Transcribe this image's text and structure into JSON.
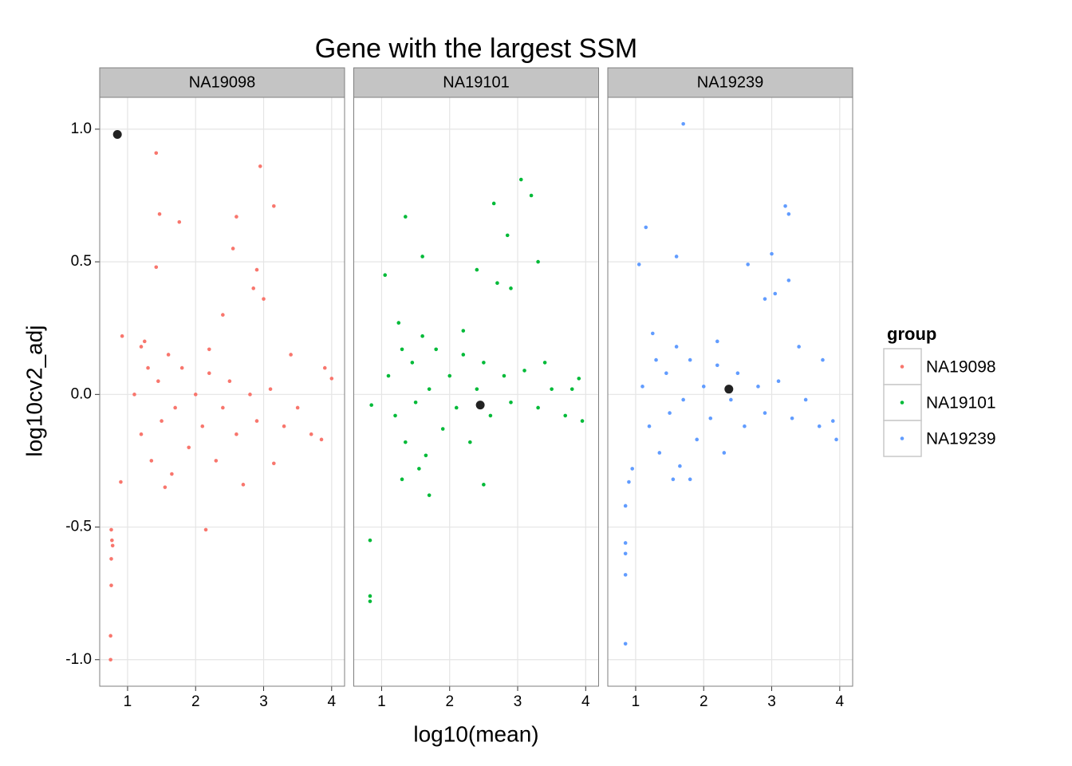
{
  "chart_data": {
    "type": "scatter",
    "title": "Gene with the largest SSM",
    "xlabel": "log10(mean)",
    "ylabel": "log10cv2_adj",
    "legend_title": "group",
    "xlim": [
      0.59,
      4.19
    ],
    "ylim": [
      -1.1,
      1.12
    ],
    "xticks": [
      1,
      2,
      3,
      4
    ],
    "yticks": [
      {
        "value": -1,
        "label": "-1.0"
      },
      -0.5,
      {
        "value": 0,
        "label": "0.0"
      },
      0.5,
      {
        "value": 1,
        "label": "1.0"
      }
    ],
    "grid": true,
    "facets": [
      {
        "label": "NA19098",
        "highlight": {
          "x": 0.85,
          "y": 0.98,
          "color": "#222222"
        },
        "series": [
          {
            "name": "NA19098",
            "color": "#F8766D",
            "x": [
              1.42,
              1.47,
              1.76,
              2.95,
              3.15,
              2.6,
              2.55,
              1.42,
              2.9,
              2.85,
              3.0,
              0.76,
              0.77,
              0.78,
              0.76,
              0.76,
              0.75,
              0.75,
              2.15,
              2.7,
              3.15,
              3.85,
              4.0,
              3.9,
              0.92,
              0.9,
              2.4,
              1.2,
              1.1,
              1.2,
              1.3,
              1.35,
              1.45,
              1.5,
              1.6,
              1.65,
              1.7,
              1.8,
              1.9,
              2.0,
              2.1,
              2.2,
              2.3,
              2.4,
              2.5,
              2.6,
              2.8,
              2.9,
              3.1,
              3.3,
              3.5,
              3.7,
              1.25,
              1.55,
              2.2,
              3.4
            ],
            "values": [
              0.91,
              0.68,
              0.65,
              0.86,
              0.71,
              0.67,
              0.55,
              0.48,
              0.47,
              0.4,
              0.36,
              -0.51,
              -0.55,
              -0.57,
              -0.62,
              -0.72,
              -0.91,
              -1.0,
              -0.51,
              -0.34,
              -0.26,
              -0.17,
              0.06,
              0.1,
              0.22,
              -0.33,
              0.3,
              0.18,
              0.0,
              -0.15,
              0.1,
              -0.25,
              0.05,
              -0.1,
              0.15,
              -0.3,
              -0.05,
              0.1,
              -0.2,
              0.0,
              -0.12,
              0.08,
              -0.25,
              -0.05,
              0.05,
              -0.15,
              0.0,
              -0.1,
              0.02,
              -0.12,
              -0.05,
              -0.15,
              0.2,
              -0.35,
              0.17,
              0.15
            ]
          }
        ]
      },
      {
        "label": "NA19101",
        "highlight": {
          "x": 2.45,
          "y": -0.04,
          "color": "#222222"
        },
        "series": [
          {
            "name": "NA19101",
            "color": "#00BA38",
            "x": [
              3.05,
              3.2,
              2.65,
              1.35,
              2.85,
              3.3,
              1.6,
              1.05,
              2.4,
              2.9,
              2.7,
              0.85,
              0.83,
              0.83,
              0.83,
              1.7,
              2.5,
              1.3,
              3.9,
              3.95,
              3.8,
              1.1,
              1.2,
              1.3,
              1.35,
              1.45,
              1.5,
              1.6,
              1.65,
              1.7,
              1.8,
              1.9,
              2.0,
              2.1,
              2.2,
              2.3,
              2.4,
              2.5,
              2.6,
              2.8,
              2.9,
              3.1,
              3.3,
              3.5,
              3.7,
              1.25,
              1.55,
              2.2,
              3.4
            ],
            "values": [
              0.81,
              0.75,
              0.72,
              0.67,
              0.6,
              0.5,
              0.52,
              0.45,
              0.47,
              0.4,
              0.42,
              -0.04,
              -0.55,
              -0.76,
              -0.78,
              -0.38,
              -0.34,
              -0.32,
              0.06,
              -0.1,
              0.02,
              0.07,
              -0.08,
              0.17,
              -0.18,
              0.12,
              -0.03,
              0.22,
              -0.23,
              0.02,
              0.17,
              -0.13,
              0.07,
              -0.05,
              0.15,
              -0.18,
              0.02,
              0.12,
              -0.08,
              0.07,
              -0.03,
              0.09,
              -0.05,
              0.02,
              -0.08,
              0.27,
              -0.28,
              0.24,
              0.12
            ]
          }
        ]
      },
      {
        "label": "NA19239",
        "highlight": {
          "x": 2.37,
          "y": 0.02,
          "color": "#222222"
        },
        "series": [
          {
            "name": "NA19239",
            "color": "#619CFF",
            "x": [
              1.7,
              3.2,
              3.25,
              1.15,
              3.0,
              1.05,
              1.6,
              2.65,
              3.25,
              2.9,
              3.05,
              0.85,
              0.85,
              0.85,
              0.85,
              0.85,
              0.9,
              0.95,
              3.75,
              3.9,
              3.95,
              1.8,
              1.1,
              1.2,
              1.3,
              1.35,
              1.45,
              1.5,
              1.6,
              1.65,
              1.7,
              1.8,
              1.9,
              2.0,
              2.1,
              2.2,
              2.3,
              2.4,
              2.5,
              2.6,
              2.8,
              2.9,
              3.1,
              3.3,
              3.5,
              3.7,
              1.25,
              1.55,
              2.2,
              3.4
            ],
            "values": [
              1.02,
              0.71,
              0.68,
              0.63,
              0.53,
              0.49,
              0.52,
              0.49,
              0.43,
              0.36,
              0.38,
              -0.56,
              -0.6,
              -0.68,
              -0.42,
              -0.94,
              -0.33,
              -0.28,
              0.13,
              -0.1,
              -0.17,
              -0.32,
              0.03,
              -0.12,
              0.13,
              -0.22,
              0.08,
              -0.07,
              0.18,
              -0.27,
              -0.02,
              0.13,
              -0.17,
              0.03,
              -0.09,
              0.11,
              -0.22,
              -0.02,
              0.08,
              -0.12,
              0.03,
              -0.07,
              0.05,
              -0.09,
              -0.02,
              -0.12,
              0.23,
              -0.32,
              0.2,
              0.18
            ]
          }
        ]
      }
    ]
  }
}
